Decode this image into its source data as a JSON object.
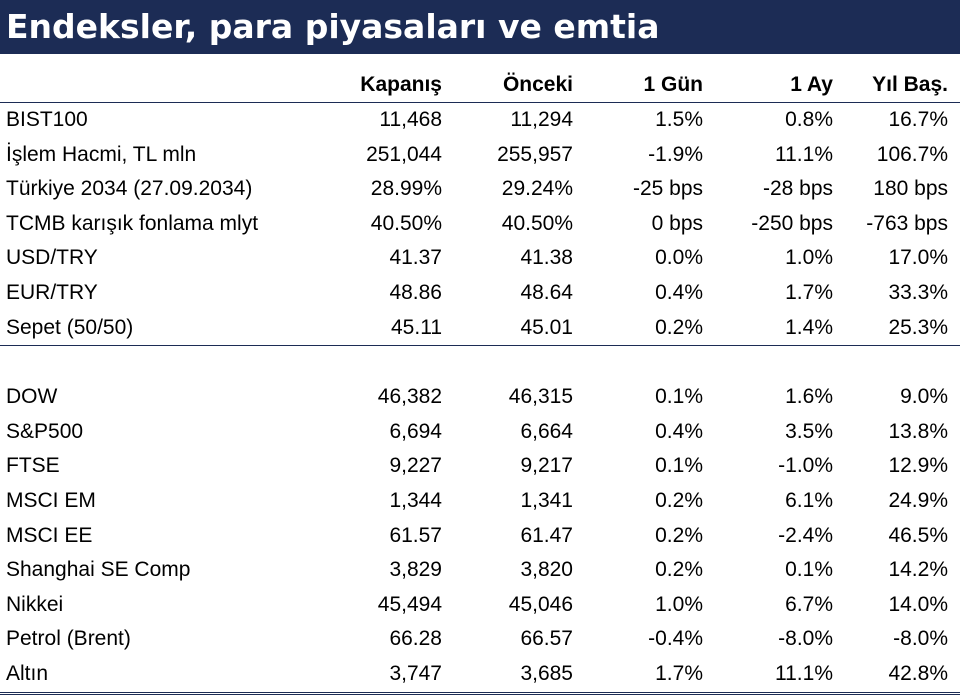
{
  "title": "Endeksler, para piyasaları ve emtia",
  "colors": {
    "title_bg": "#1c2c55",
    "title_text": "#ffffff",
    "rule": "#1c2c55"
  },
  "columns": [
    "Kapanış",
    "Önceki",
    "1 Gün",
    "1 Ay",
    "Yıl Baş."
  ],
  "group1": [
    {
      "name": "BIST100",
      "values": [
        "11,468",
        "11,294",
        "1.5%",
        "0.8%",
        "16.7%"
      ]
    },
    {
      "name": "İşlem Hacmi, TL mln",
      "values": [
        "251,044",
        "255,957",
        "-1.9%",
        "11.1%",
        "106.7%"
      ]
    },
    {
      "name": "Türkiye 2034 (27.09.2034)",
      "values": [
        "28.99%",
        "29.24%",
        "-25 bps",
        "-28 bps",
        "180 bps"
      ]
    },
    {
      "name": "TCMB karışık fonlama mlyt",
      "values": [
        "40.50%",
        "40.50%",
        "0 bps",
        "-250 bps",
        "-763 bps"
      ]
    },
    {
      "name": "USD/TRY",
      "values": [
        "41.37",
        "41.38",
        "0.0%",
        "1.0%",
        "17.0%"
      ]
    },
    {
      "name": "EUR/TRY",
      "values": [
        "48.86",
        "48.64",
        "0.4%",
        "1.7%",
        "33.3%"
      ]
    },
    {
      "name": "Sepet (50/50)",
      "values": [
        "45.11",
        "45.01",
        "0.2%",
        "1.4%",
        "25.3%"
      ]
    }
  ],
  "group2": [
    {
      "name": "DOW",
      "values": [
        "46,382",
        "46,315",
        "0.1%",
        "1.6%",
        "9.0%"
      ]
    },
    {
      "name": "S&P500",
      "values": [
        "6,694",
        "6,664",
        "0.4%",
        "3.5%",
        "13.8%"
      ]
    },
    {
      "name": "FTSE",
      "values": [
        "9,227",
        "9,217",
        "0.1%",
        "-1.0%",
        "12.9%"
      ]
    },
    {
      "name": "MSCI EM",
      "values": [
        "1,344",
        "1,341",
        "0.2%",
        "6.1%",
        "24.9%"
      ]
    },
    {
      "name": "MSCI EE",
      "values": [
        "61.57",
        "61.47",
        "0.2%",
        "-2.4%",
        "46.5%"
      ]
    },
    {
      "name": "Shanghai SE Comp",
      "values": [
        "3,829",
        "3,820",
        "0.2%",
        "0.1%",
        "14.2%"
      ]
    },
    {
      "name": "Nikkei",
      "values": [
        "45,494",
        "45,046",
        "1.0%",
        "6.7%",
        "14.0%"
      ]
    },
    {
      "name": "Petrol (Brent)",
      "values": [
        "66.28",
        "66.57",
        "-0.4%",
        "-8.0%",
        "-8.0%"
      ]
    },
    {
      "name": "Altın",
      "values": [
        "3,747",
        "3,685",
        "1.7%",
        "11.1%",
        "42.8%"
      ]
    }
  ]
}
